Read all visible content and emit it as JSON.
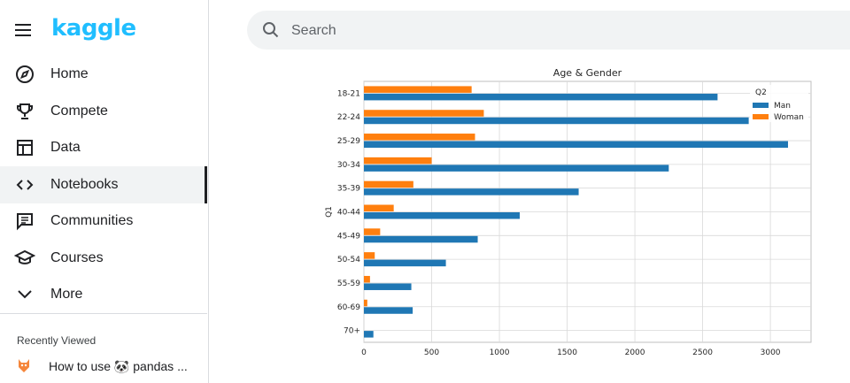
{
  "brand": {
    "logo_text": "kaggle",
    "color": "#20beff"
  },
  "sidebar": {
    "menu_icon": "hamburger-menu-icon",
    "items": [
      {
        "label": "Home",
        "icon": "compass-icon",
        "active": false
      },
      {
        "label": "Compete",
        "icon": "trophy-icon",
        "active": false
      },
      {
        "label": "Data",
        "icon": "table-icon",
        "active": false
      },
      {
        "label": "Notebooks",
        "icon": "code-icon",
        "active": true
      },
      {
        "label": "Communities",
        "icon": "comments-icon",
        "active": false
      },
      {
        "label": "Courses",
        "icon": "graduation-cap-icon",
        "active": false
      },
      {
        "label": "More",
        "icon": "chevron-down-icon",
        "active": false
      }
    ],
    "recent": {
      "title": "Recently Viewed",
      "item_label": "How to use 🐼 pandas ..."
    }
  },
  "search": {
    "placeholder": "Search",
    "value": ""
  },
  "chart_data": {
    "type": "bar",
    "orientation": "horizontal",
    "title": "Age & Gender",
    "ylabel": "Q1",
    "xlabel": "",
    "categories": [
      "18-21",
      "22-24",
      "25-29",
      "30-34",
      "35-39",
      "40-44",
      "45-49",
      "50-54",
      "55-59",
      "60-69",
      "70+"
    ],
    "series": [
      {
        "name": "Man",
        "color": "#1f77b4",
        "values": [
          2610,
          2840,
          3130,
          2250,
          1585,
          1150,
          840,
          605,
          350,
          360,
          70
        ]
      },
      {
        "name": "Woman",
        "color": "#ff7f0e",
        "values": [
          795,
          885,
          820,
          500,
          365,
          220,
          120,
          80,
          45,
          25,
          0
        ]
      }
    ],
    "xlim": [
      0,
      3300
    ],
    "xticks": [
      0,
      500,
      1000,
      1500,
      2000,
      2500,
      3000
    ],
    "legend_title": "Q2",
    "legend_position": "top-right",
    "grid": true
  }
}
